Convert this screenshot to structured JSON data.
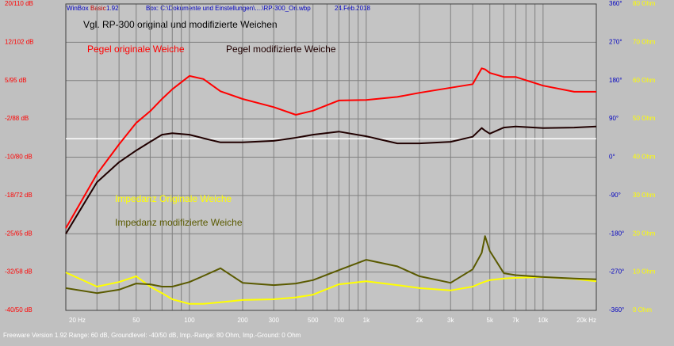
{
  "title_bar": {
    "app": "WinBox",
    "edition": "Basic",
    "version": "1.92",
    "box": "Box: C:\\Dokumente und Einstellungen\\....\\RP-300_Ori.wbp",
    "date": "24.Feb.2018"
  },
  "footer": "Freeware Version 1.92  Range: 60 dB, Groundlevel: -40/50 dB, Imp.-Range: 80 Ohm, Imp.-Ground: 0 Ohm",
  "chart_data": {
    "type": "line",
    "title": "Vgl. RP-300 original und modifizierte Weichen",
    "log_x": true,
    "grid": true,
    "x": [
      20,
      30,
      40,
      50,
      60,
      70,
      80,
      100,
      120,
      150,
      200,
      300,
      400,
      500,
      700,
      1000,
      1500,
      2000,
      3000,
      4000,
      4500,
      4700,
      5000,
      6000,
      7000,
      10000,
      15000,
      20000
    ],
    "xlim": [
      20,
      20000
    ],
    "xticks": [
      {
        "value": 20,
        "label": "20 Hz"
      },
      50,
      100,
      200,
      300,
      500,
      700,
      {
        "value": 1000,
        "label": "1k"
      },
      {
        "value": 2000,
        "label": "2k"
      },
      {
        "value": 3000,
        "label": "3k"
      },
      {
        "value": 5000,
        "label": "5k"
      },
      {
        "value": 7000,
        "label": "7k"
      },
      {
        "value": 10000,
        "label": "10k"
      },
      {
        "value": 20000,
        "label": "20k Hz"
      }
    ],
    "xgrid_minor": [
      30,
      40,
      60,
      70,
      80,
      90,
      400,
      600,
      800,
      900,
      4000,
      6000,
      8000,
      9000
    ],
    "ylim": [
      -40,
      20
    ],
    "yticks": [
      {
        "value": 20,
        "label": "20/110 dB"
      },
      {
        "value": 12.5,
        "label": "12/102 dB"
      },
      {
        "value": 5,
        "label": "5/95 dB"
      },
      {
        "value": -2.5,
        "label": "-2/88 dB"
      },
      {
        "value": -10,
        "label": "-10/80 dB"
      },
      {
        "value": -17.5,
        "label": "-18/72 dB"
      },
      {
        "value": -25,
        "label": "-25/65 dB"
      },
      {
        "value": -32.5,
        "label": "-32/58 dB"
      },
      {
        "value": -40,
        "label": "-40/50 dB"
      }
    ],
    "phase_lim": [
      -360,
      360
    ],
    "phase_ticks": [
      {
        "value": 360,
        "label": "360°"
      },
      {
        "value": 270,
        "label": "270°"
      },
      {
        "value": 180,
        "label": "180°"
      },
      {
        "value": 90,
        "label": "90°"
      },
      {
        "value": 0,
        "label": "0°"
      },
      {
        "value": -90,
        "label": "-90°"
      },
      {
        "value": -180,
        "label": "-180°"
      },
      {
        "value": -270,
        "label": "-270°"
      },
      {
        "value": -360,
        "label": "-360°"
      }
    ],
    "y2lim": [
      0,
      80
    ],
    "y2ticks": [
      {
        "value": 80,
        "label": "80 Ohm"
      },
      {
        "value": 70,
        "label": "70 Ohm"
      },
      {
        "value": 60,
        "label": "60 Ohm"
      },
      {
        "value": 50,
        "label": "50 Ohm"
      },
      {
        "value": 40,
        "label": "40 Ohm"
      },
      {
        "value": 30,
        "label": "30 Ohm"
      },
      {
        "value": 20,
        "label": "20 Ohm"
      },
      {
        "value": 10,
        "label": "10 Ohm"
      },
      {
        "value": 0,
        "label": "0 Ohm"
      }
    ],
    "reference_line": -6.4,
    "series": [
      {
        "name": "Pegel originale Weiche",
        "color": "#ff0000",
        "values": [
          -23.9,
          -13.3,
          -7.5,
          -3.3,
          -1,
          1.4,
          3.3,
          5.9,
          5.3,
          2.9,
          1.4,
          -0.2,
          -1.7,
          -0.9,
          1.1,
          1.2,
          1.8,
          2.6,
          3.6,
          4.3,
          7.4,
          7.2,
          6.5,
          5.7,
          5.7,
          4.0,
          2.8,
          2.8
        ]
      },
      {
        "name": "Pegel modifizierte Weiche",
        "color": "#200000",
        "values": [
          -25,
          -14.9,
          -11,
          -8.7,
          -7,
          -5.6,
          -5.3,
          -5.6,
          -6.3,
          -7.1,
          -7.1,
          -6.8,
          -6.2,
          -5.6,
          -5,
          -5.9,
          -7.3,
          -7.3,
          -7,
          -6,
          -4.3,
          -4.8,
          -5.4,
          -4.2,
          -4,
          -4.3,
          -4.2,
          -4
        ]
      },
      {
        "name": "Impedanz Originale Weiche",
        "color": "#ffff00",
        "axis": "y2",
        "values": [
          9.9,
          6.2,
          7.4,
          8.9,
          6.2,
          4.5,
          2.9,
          1.7,
          1.7,
          2.1,
          2.7,
          2.9,
          3.4,
          4.1,
          6.8,
          7.6,
          6.6,
          5.8,
          5.2,
          6.2,
          7.2,
          7.5,
          7.9,
          8.3,
          8.5,
          8.7,
          8.2,
          7.6
        ]
      },
      {
        "name": "Impedanz modifizierte Weiche",
        "color": "#5a5a00",
        "axis": "y2",
        "values": [
          5.8,
          4.5,
          5.4,
          7,
          6.8,
          6.2,
          6.2,
          7.4,
          9,
          11,
          7.2,
          6.6,
          7,
          7.9,
          10.5,
          13.2,
          11.5,
          8.9,
          7.2,
          10.7,
          15,
          19.4,
          15.5,
          9.7,
          9.2,
          8.7,
          8.3,
          8.1
        ]
      }
    ]
  }
}
